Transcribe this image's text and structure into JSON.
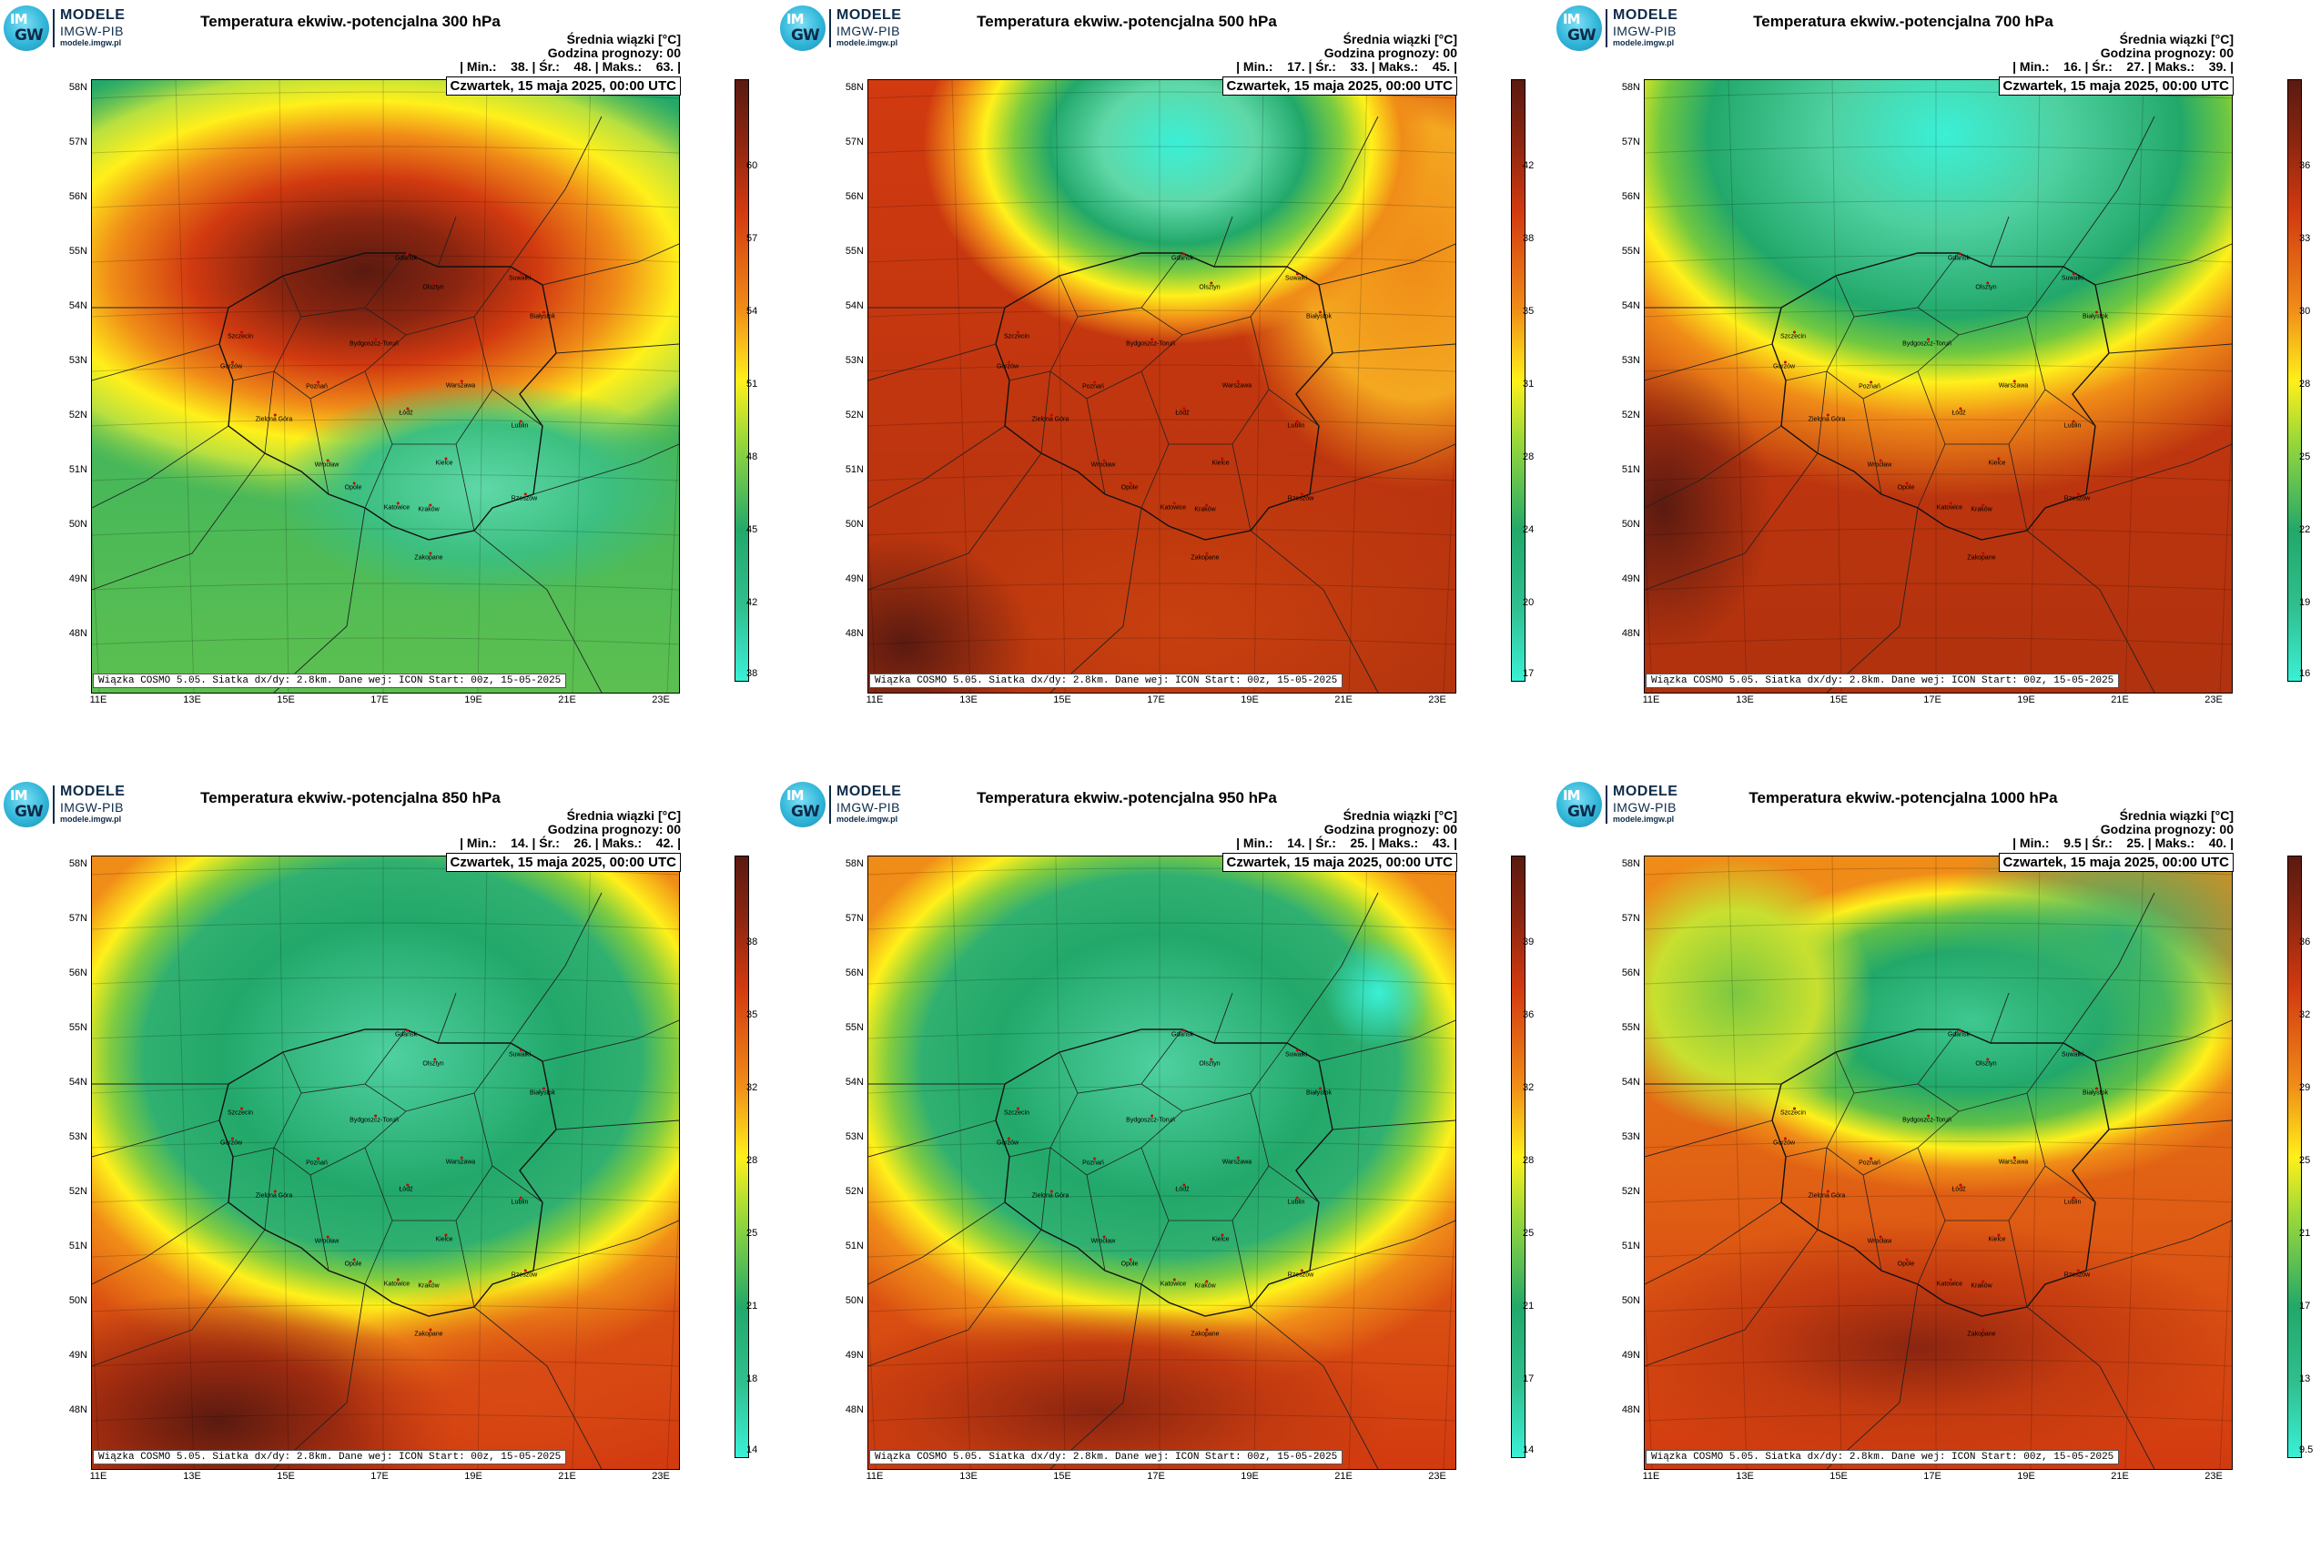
{
  "logo": {
    "top": "MODELE",
    "mid": "IMGW-PIB",
    "url": "modele.imgw.pl",
    "circle_top": "IM",
    "circle_bottom": "GW"
  },
  "common": {
    "mean_label": "Średnia wiązki [°C]",
    "forecast_hour": "Godzina prognozy: 00",
    "date": "Czwartek, 15 maja 2025, 00:00 UTC",
    "footer": "Wiązka COSMO 5.05. Siatka dx/dy: 2.8km. Dane wej: ICON Start: 00z, 15-05-2025",
    "lat_labels": [
      "58N",
      "57N",
      "56N",
      "55N",
      "54N",
      "53N",
      "52N",
      "51N",
      "50N",
      "49N",
      "48N"
    ],
    "lon_labels": [
      "11E",
      "13E",
      "15E",
      "17E",
      "19E",
      "21E",
      "23E"
    ]
  },
  "cities": [
    {
      "name": "Gdańsk"
    },
    {
      "name": "Olsztyn"
    },
    {
      "name": "Suwałki"
    },
    {
      "name": "Białystok"
    },
    {
      "name": "Szczecin"
    },
    {
      "name": "Bydgoszcz-Toruń"
    },
    {
      "name": "Gorzów"
    },
    {
      "name": "Poznań"
    },
    {
      "name": "Warszawa"
    },
    {
      "name": "Zielona Góra"
    },
    {
      "name": "Łódź"
    },
    {
      "name": "Lublin"
    },
    {
      "name": "Wrocław"
    },
    {
      "name": "Kielce"
    },
    {
      "name": "Opole"
    },
    {
      "name": "Katowice"
    },
    {
      "name": "Kraków"
    },
    {
      "name": "Rzeszów"
    },
    {
      "name": "Zakopane"
    }
  ],
  "colors": {
    "cold": "#3af0d6",
    "green": "#22a86a",
    "yellow": "#fff01a",
    "orange": "#f08c18",
    "red": "#d23a10",
    "darkred": "#5a1a10"
  },
  "panels": [
    {
      "id": "p300",
      "title": "Temperatura ekwiw.-potencjalna 300 hPa",
      "stats": "| Min.:    38. | Śr.:    48. | Maks.:    63. |",
      "cbar": [
        "60",
        "57",
        "54",
        "51",
        "48",
        "45",
        "42",
        "38"
      ],
      "pattern": "warm-north"
    },
    {
      "id": "p500",
      "title": "Temperatura ekwiw.-potencjalna 500 hPa",
      "stats": "| Min.:    17. | Śr.:    33. | Maks.:    45. |",
      "cbar": [
        "42",
        "38",
        "35",
        "31",
        "28",
        "24",
        "20",
        "17"
      ],
      "pattern": "cold-north-small"
    },
    {
      "id": "p700",
      "title": "Temperatura ekwiw.-potencjalna 700 hPa",
      "stats": "| Min.:    16. | Śr.:    27. | Maks.:    39. |",
      "cbar": [
        "36",
        "33",
        "30",
        "28",
        "25",
        "22",
        "19",
        "16"
      ],
      "pattern": "cold-north-big"
    },
    {
      "id": "p850",
      "title": "Temperatura ekwiw.-potencjalna 850 hPa",
      "stats": "| Min.:    14. | Śr.:    26. | Maks.:    42. |",
      "cbar": [
        "38",
        "35",
        "32",
        "28",
        "25",
        "21",
        "18",
        "14"
      ],
      "pattern": "cold-center"
    },
    {
      "id": "p950",
      "title": "Temperatura ekwiw.-potencjalna 950 hPa",
      "stats": "| Min.:    14. | Śr.:    25. | Maks.:    43. |",
      "cbar": [
        "39",
        "36",
        "32",
        "28",
        "25",
        "21",
        "17",
        "14"
      ],
      "pattern": "cold-center2"
    },
    {
      "id": "p1000",
      "title": "Temperatura ekwiw.-potencjalna 1000 hPa",
      "stats": "| Min.:    9.5 | Śr.:    25. | Maks.:    40. |",
      "cbar": [
        "36",
        "32",
        "29",
        "25",
        "21",
        "17",
        "13",
        "9.5"
      ],
      "pattern": "cold-ne"
    }
  ]
}
